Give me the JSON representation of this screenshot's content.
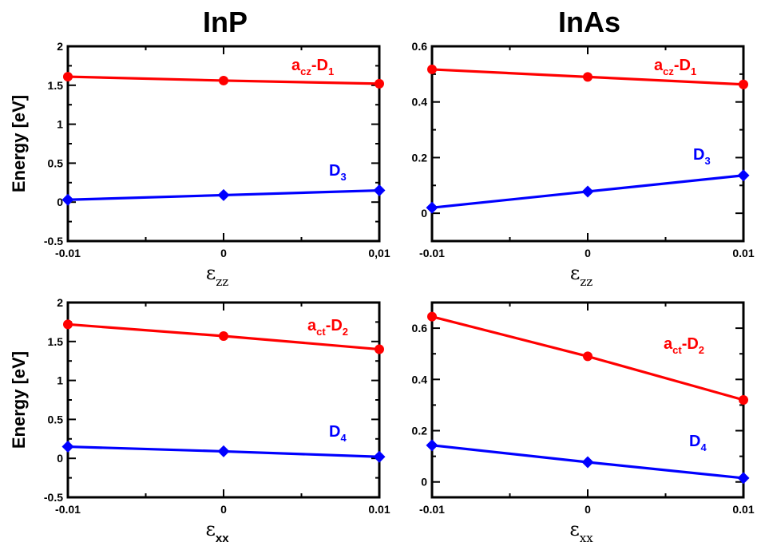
{
  "column_titles": [
    "InP",
    "InAs"
  ],
  "chart_data": [
    {
      "type": "line",
      "title": "InP",
      "ylabel": "Energy [eV]",
      "xlabel": {
        "main": "ε",
        "sub": "zz",
        "sub_bold": false
      },
      "x": [
        -0.01,
        0,
        0.01
      ],
      "xtick_labels": [
        "-0.01",
        "0",
        "0,01"
      ],
      "ylim": [
        -0.5,
        2
      ],
      "yticks": [
        -0.5,
        0,
        0.5,
        1,
        1.5,
        2
      ],
      "ytick_labels": [
        "-0.5",
        "0",
        "0.5",
        "1",
        "1.5",
        "2"
      ],
      "grid": false,
      "series": [
        {
          "name": "acz-D1",
          "label_main": "a",
          "label_sub": "cz",
          "label_mid": "-D",
          "label_sub2": "1",
          "color": "#ff0000",
          "marker": "circle",
          "values": [
            1.61,
            1.56,
            1.52
          ]
        },
        {
          "name": "D3",
          "label_main": "D",
          "label_sub": "3",
          "label_mid": "",
          "label_sub2": "",
          "color": "#0000ff",
          "marker": "diamond",
          "values": [
            0.03,
            0.09,
            0.15
          ]
        }
      ]
    },
    {
      "type": "line",
      "title": "InAs",
      "ylabel": "",
      "xlabel": {
        "main": "ε",
        "sub": "zz",
        "sub_bold": false
      },
      "x": [
        -0.01,
        0,
        0.01
      ],
      "xtick_labels": [
        "-0.01",
        "0",
        "0.01"
      ],
      "ylim": [
        -0.1,
        0.6
      ],
      "yticks": [
        0,
        0.2,
        0.4,
        0.6
      ],
      "ytick_labels": [
        "0",
        "0.2",
        "0.4",
        "0.6"
      ],
      "grid": false,
      "series": [
        {
          "name": "acz-D1",
          "label_main": "a",
          "label_sub": "cz",
          "label_mid": "-D",
          "label_sub2": "1",
          "color": "#ff0000",
          "marker": "circle",
          "values": [
            0.517,
            0.49,
            0.463
          ]
        },
        {
          "name": "D3",
          "label_main": "D",
          "label_sub": "3",
          "label_mid": "",
          "label_sub2": "",
          "color": "#0000ff",
          "marker": "diamond",
          "values": [
            0.02,
            0.078,
            0.136
          ]
        }
      ]
    },
    {
      "type": "line",
      "title": "InP",
      "ylabel": "Energy [eV]",
      "xlabel": {
        "main": "ε",
        "sub": "xx",
        "sub_bold": true
      },
      "x": [
        -0.01,
        0,
        0.01
      ],
      "xtick_labels": [
        "-0.01",
        "0",
        "0.01"
      ],
      "ylim": [
        -0.5,
        2
      ],
      "yticks": [
        -0.5,
        0,
        0.5,
        1,
        1.5,
        2
      ],
      "ytick_labels": [
        "-0.5",
        "0",
        "0.5",
        "1",
        "1.5",
        "2"
      ],
      "grid": false,
      "series": [
        {
          "name": "act-D2",
          "label_main": "a",
          "label_sub": "ct",
          "label_mid": "-D",
          "label_sub2": "2",
          "color": "#ff0000",
          "marker": "circle",
          "values": [
            1.72,
            1.57,
            1.4
          ]
        },
        {
          "name": "D4",
          "label_main": "D",
          "label_sub": "4",
          "label_mid": "",
          "label_sub2": "",
          "color": "#0000ff",
          "marker": "diamond",
          "values": [
            0.15,
            0.09,
            0.02
          ]
        }
      ]
    },
    {
      "type": "line",
      "title": "InAs",
      "ylabel": "",
      "xlabel": {
        "main": "ε",
        "sub": "xx",
        "sub_bold": false
      },
      "x": [
        -0.01,
        0,
        0.01
      ],
      "xtick_labels": [
        "-0.01",
        "0",
        "0.01"
      ],
      "ylim": [
        -0.06,
        0.7
      ],
      "yticks": [
        0,
        0.2,
        0.4,
        0.6
      ],
      "ytick_labels": [
        "0",
        "0.2",
        "0.4",
        "0.6"
      ],
      "grid": false,
      "series": [
        {
          "name": "act-D2",
          "label_main": "a",
          "label_sub": "ct",
          "label_mid": "-D",
          "label_sub2": "2",
          "color": "#ff0000",
          "marker": "circle",
          "values": [
            0.645,
            0.49,
            0.32
          ]
        },
        {
          "name": "D4",
          "label_main": "D",
          "label_sub": "4",
          "label_mid": "",
          "label_sub2": "",
          "color": "#0000ff",
          "marker": "diamond",
          "values": [
            0.143,
            0.077,
            0.015
          ]
        }
      ]
    }
  ]
}
